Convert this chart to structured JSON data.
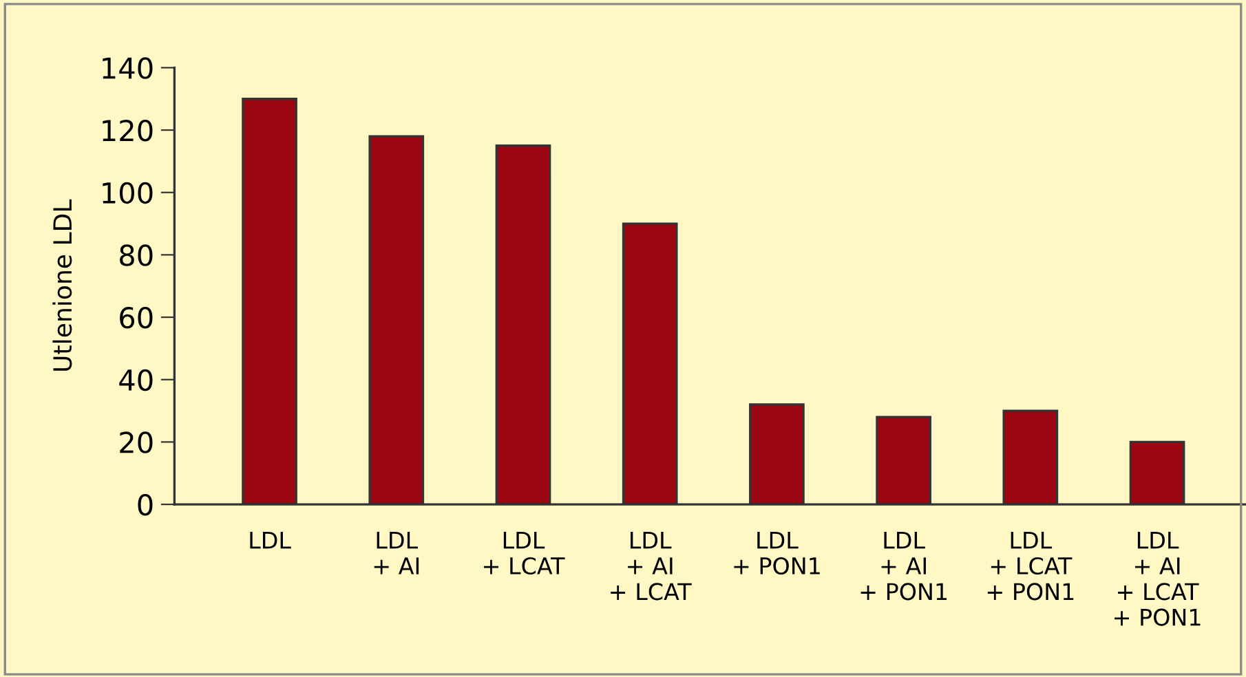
{
  "chart_data": {
    "type": "bar",
    "ylabel": "Utlenione LDL",
    "categories": [
      "LDL",
      "LDL\n+ AI",
      "LDL\n+ LCAT",
      "LDL\n+ AI\n+ LCAT",
      "LDL\n+ PON1",
      "LDL\n+ AI\n+ PON1",
      "LDL\n+ LCAT\n+ PON1",
      "LDL\n+ AI\n+ LCAT\n+ PON1"
    ],
    "values": [
      130,
      118,
      115,
      90,
      32,
      28,
      30,
      20
    ],
    "color": "#9b0610",
    "ylim": [
      0,
      140
    ],
    "yticks": [
      0,
      20,
      40,
      60,
      80,
      100,
      120,
      140
    ],
    "grid": false
  }
}
